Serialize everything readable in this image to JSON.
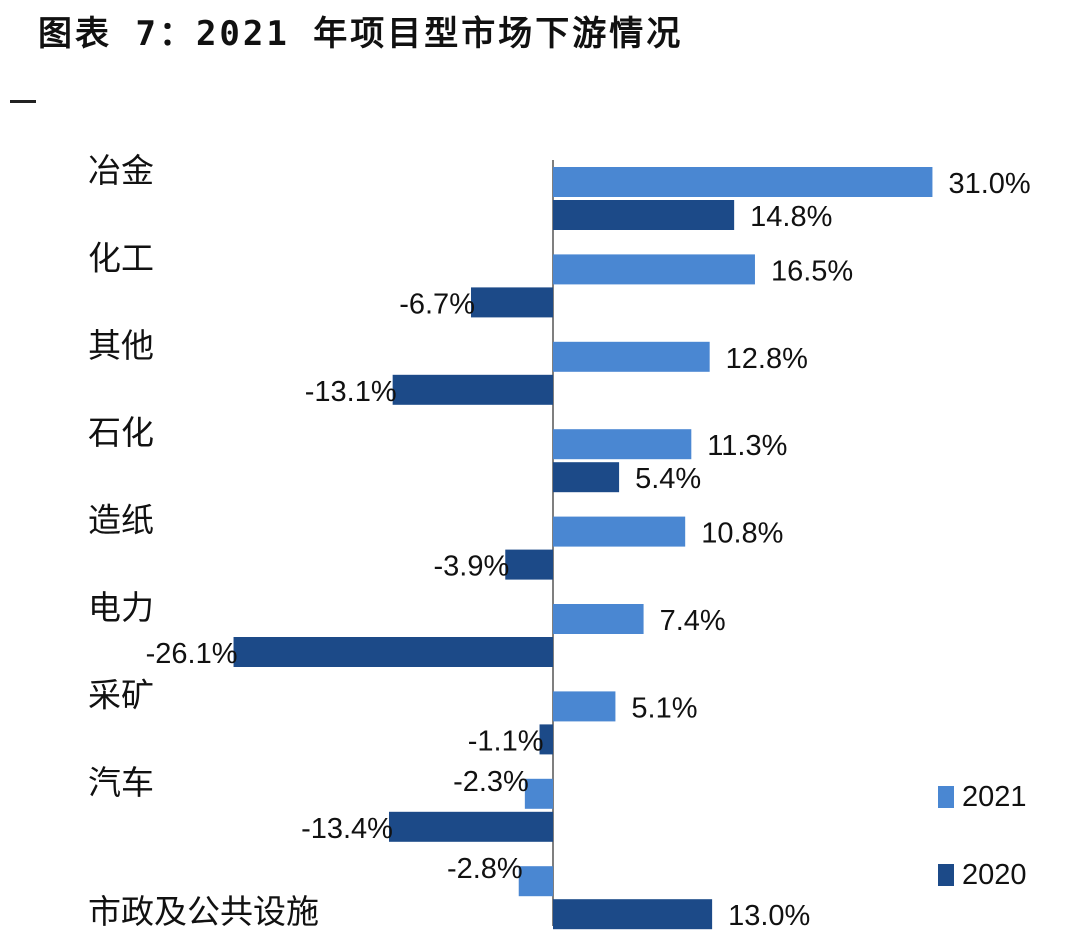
{
  "title": "图表 7：2021 年项目型市场下游情况",
  "colors": {
    "s2021": "#4a87d2",
    "s2020": "#1c4a88",
    "axis": "#555555"
  },
  "chart_data": {
    "type": "bar",
    "orientation": "horizontal",
    "title": "图表 7：2021 年项目型市场下游情况",
    "categories": [
      "冶金",
      "化工",
      "其他",
      "石化",
      "造纸",
      "电力",
      "采矿",
      "汽车",
      "市政及公共设施"
    ],
    "series": [
      {
        "name": "2021",
        "values": [
          31.0,
          16.5,
          12.8,
          11.3,
          10.8,
          7.4,
          5.1,
          -2.3,
          -2.8
        ],
        "labels": [
          "31.0%",
          "16.5%",
          "12.8%",
          "11.3%",
          "10.8%",
          "7.4%",
          "5.1%",
          "-2.3%",
          "-2.8%"
        ]
      },
      {
        "name": "2020",
        "values": [
          14.8,
          -6.7,
          -13.1,
          5.4,
          -3.9,
          -26.1,
          -1.1,
          -13.4,
          13.0
        ],
        "labels": [
          "14.8%",
          "-6.7%",
          "-13.1%",
          "5.4%",
          "-3.9%",
          "-26.1%",
          "-1.1%",
          "-13.4%",
          "13.0%"
        ]
      }
    ],
    "xlim": [
      -26.1,
      31.0
    ],
    "unit": "%",
    "grid": false,
    "legend": "bottom-right"
  }
}
